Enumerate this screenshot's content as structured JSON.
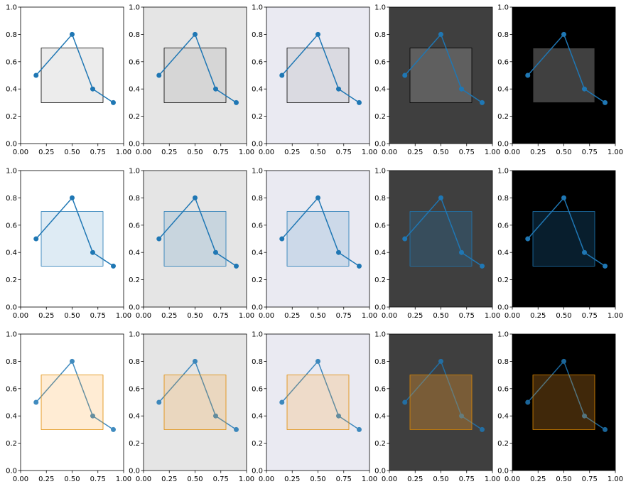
{
  "chart_data": {
    "type": "line",
    "layout": {
      "rows": 3,
      "cols": 5
    },
    "xlim": [
      0,
      1
    ],
    "ylim": [
      0,
      1
    ],
    "xticks": [
      0,
      0.25,
      0.5,
      0.75,
      1
    ],
    "xtick_labels": [
      "0.00",
      "0.25",
      "0.50",
      "0.75",
      "1.00"
    ],
    "yticks": [
      0,
      0.2,
      0.4,
      0.6,
      0.8,
      1
    ],
    "ytick_labels": [
      "0.0",
      "0.2",
      "0.4",
      "0.6",
      "0.8",
      "1.0"
    ],
    "line_series": {
      "x": [
        0.15,
        0.5,
        0.7,
        0.9
      ],
      "y": [
        0.5,
        0.8,
        0.4,
        0.3
      ],
      "color": "#1f77b4",
      "marker": "o"
    },
    "rectangle_data": {
      "x": [
        0.2,
        0.8
      ],
      "y": [
        0.3,
        0.7
      ]
    },
    "backgrounds": [
      "#ffffff",
      "#e5e5e5",
      "#eaeaf2",
      "#3f3f3f",
      "#000000"
    ],
    "rows": [
      {
        "rectangle_fill": "#808080",
        "rectangle_edge": "#000000",
        "fill_alphas": [
          0.15,
          0.15,
          0.15,
          0.5,
          0.5
        ],
        "edge_color": [
          "#000000",
          "#000000",
          "#000000",
          "#000000",
          "#000000"
        ]
      },
      {
        "rectangle_fill": "#1f77b4",
        "rectangle_edge": "#1f77b4",
        "fill_alphas": [
          0.15,
          0.15,
          0.15,
          0.25,
          0.25
        ],
        "edge_color": [
          "#1f77b4",
          "#1f77b4",
          "#1f77b4",
          "#1f77b4",
          "#1f77b4"
        ]
      },
      {
        "rectangle_fill": "#ff9f26",
        "rectangle_edge": "#ff8c00",
        "fill_alphas": [
          0.2,
          0.2,
          0.2,
          0.3,
          0.25
        ],
        "edge_color": [
          "#e08a00",
          "#e08a00",
          "#e08a00",
          "#e08a00",
          "#e08a00"
        ]
      }
    ],
    "line_on_top": [
      true,
      true,
      false
    ]
  }
}
